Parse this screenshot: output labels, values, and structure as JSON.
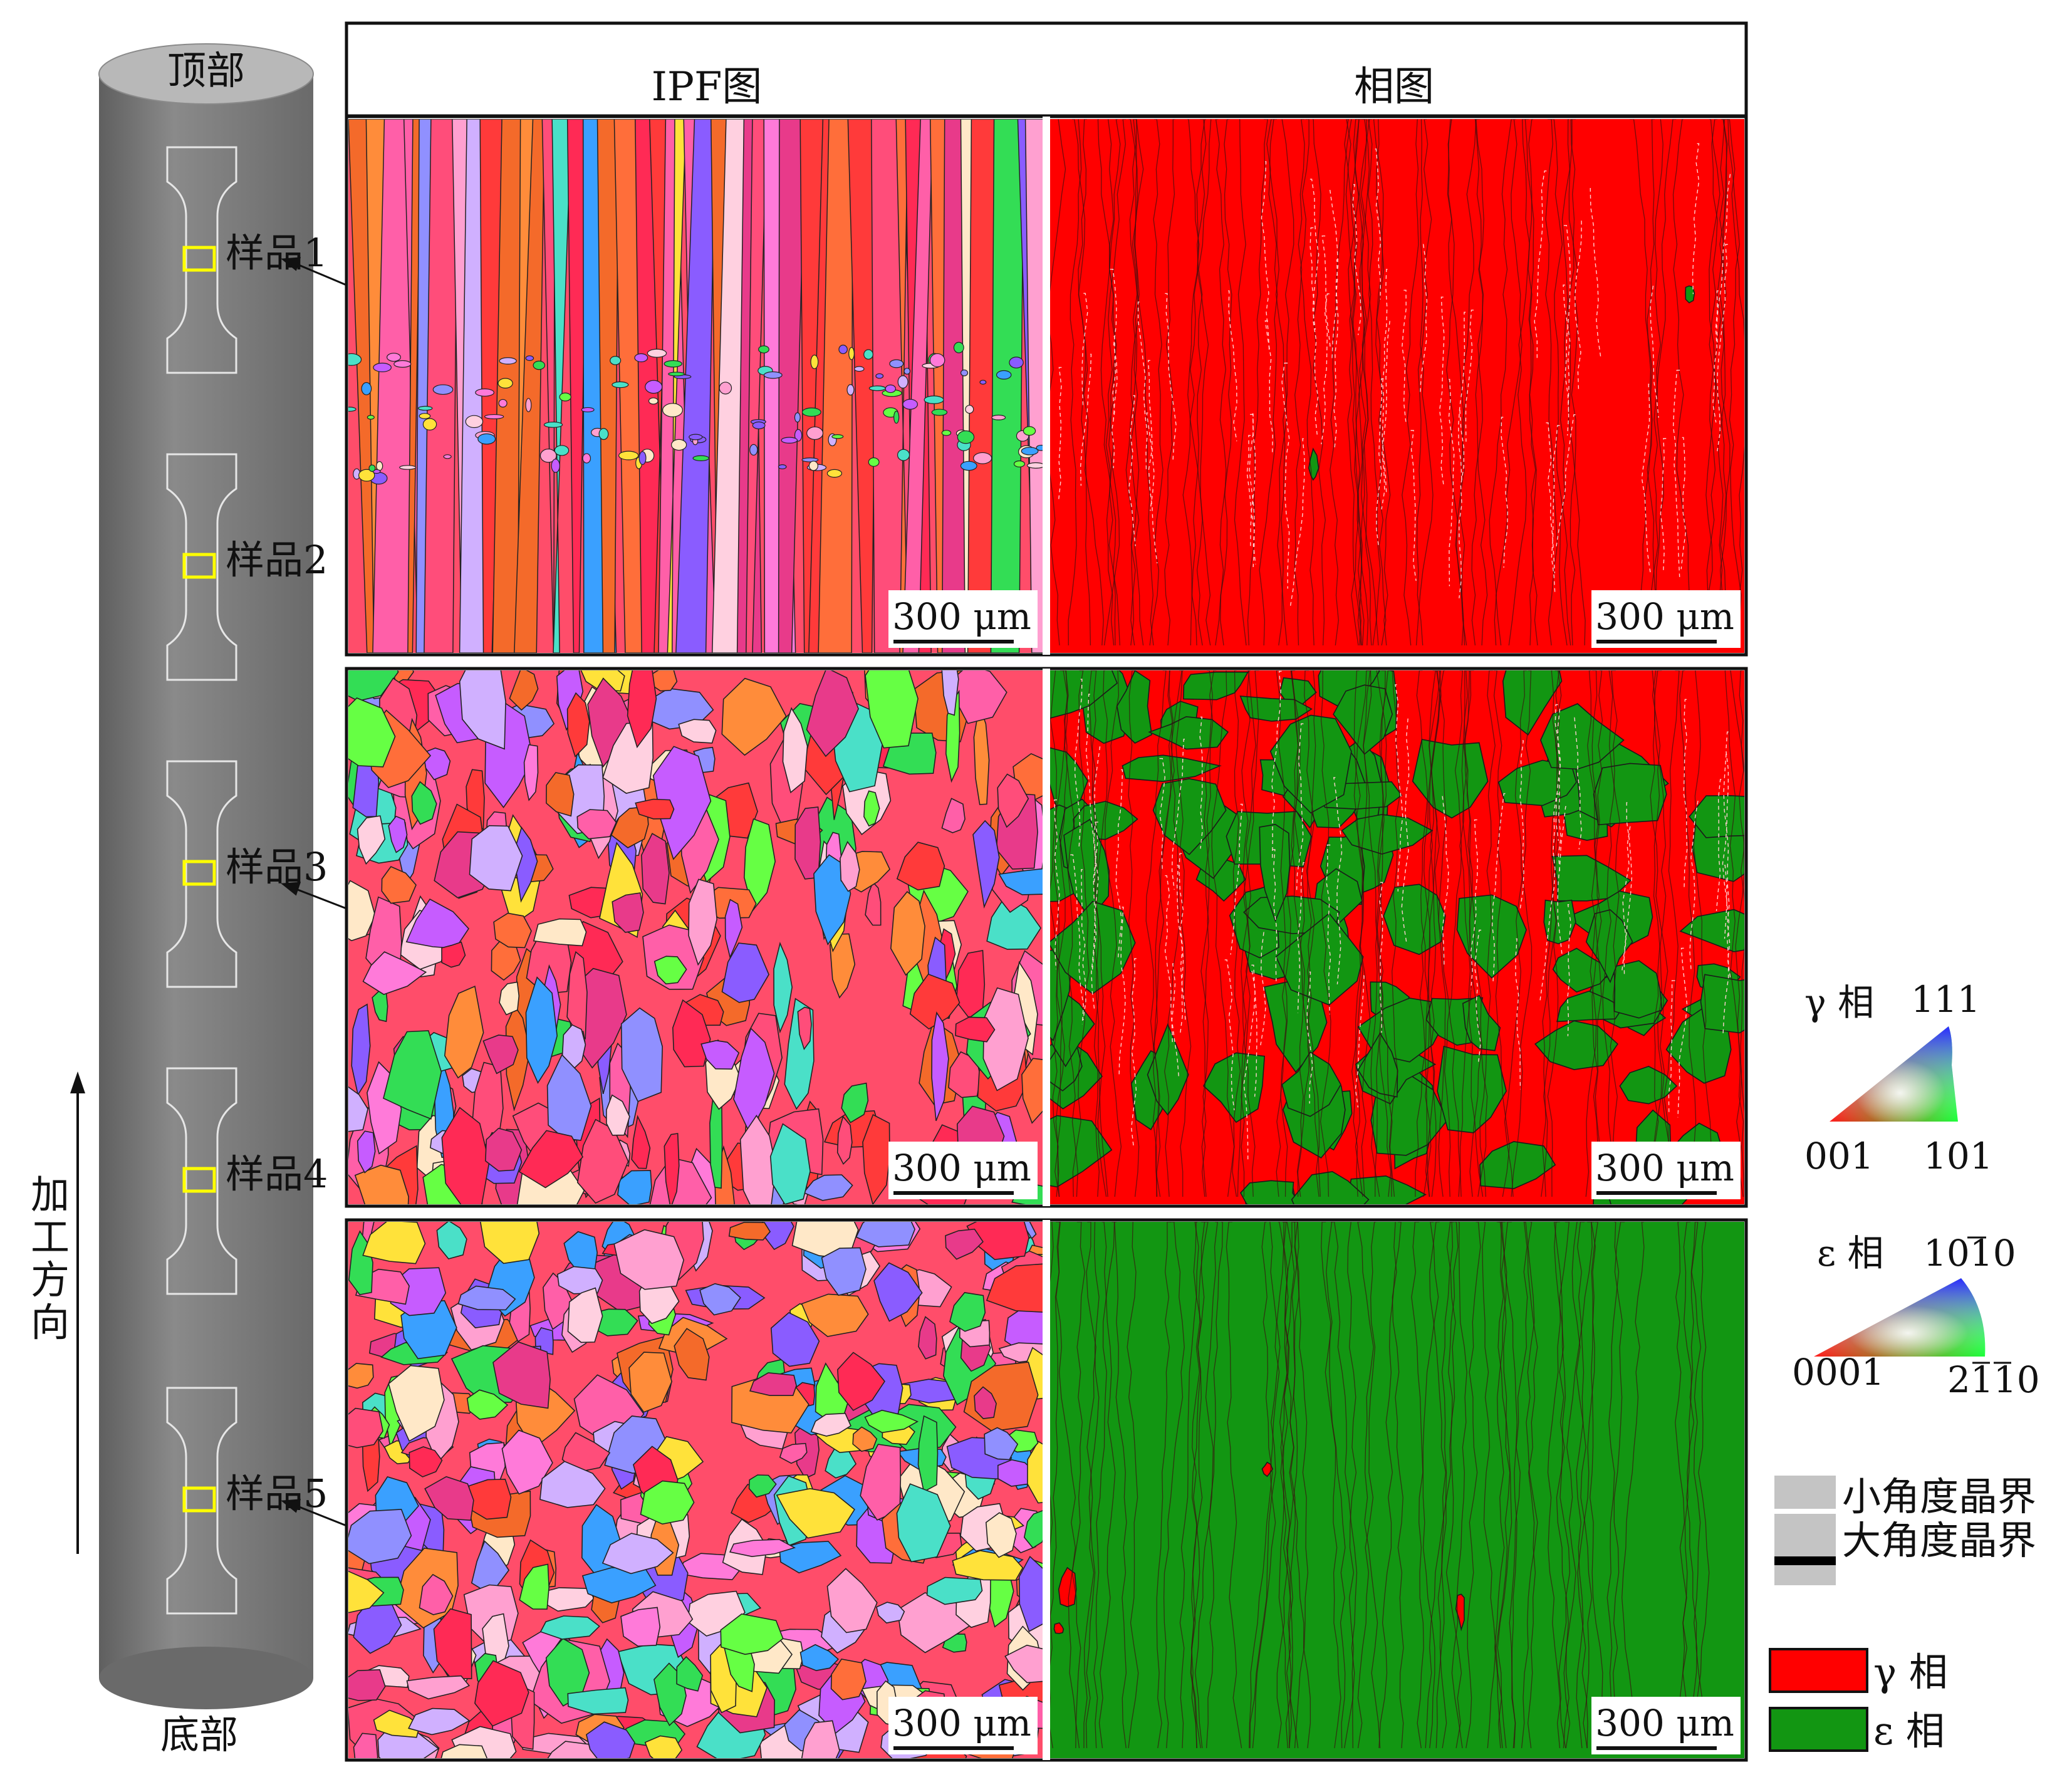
{
  "cylinder": {
    "top_label": "顶部",
    "bottom_label": "底部",
    "direction_label": [
      "加",
      "工",
      "方",
      "向"
    ],
    "samples": [
      "样品1",
      "样品2",
      "样品3",
      "样品4",
      "样品5"
    ]
  },
  "columns": {
    "ipf_title": "IPF图",
    "phase_title": "相图"
  },
  "scale_bar": "300 μm",
  "legend": {
    "gamma_ipf": {
      "phase": "γ 相",
      "top": "111",
      "left": "001",
      "right": "101"
    },
    "epsilon_ipf": {
      "phase": "ε 相",
      "top": "1010",
      "left": "0001",
      "right": "2110"
    },
    "boundaries": {
      "low_angle": "小角度晶界",
      "high_angle": "大角度晶界"
    },
    "phases": [
      {
        "label": "γ 相",
        "color": "#ff0000"
      },
      {
        "label": "ε 相",
        "color": "#129612"
      }
    ]
  },
  "colors": {
    "cylinder": "#7a7a7a",
    "cylinder_top": "#b8b8b8",
    "gamma": "#ff0000",
    "epsilon": "#129612",
    "sample_marker": "#ffff00"
  },
  "phase_fractions": [
    {
      "sample": "样品1",
      "gamma": 0.99,
      "epsilon": 0.01
    },
    {
      "sample": "样品3",
      "gamma": 0.55,
      "epsilon": 0.45
    },
    {
      "sample": "样品5",
      "gamma": 0.02,
      "epsilon": 0.98
    }
  ]
}
